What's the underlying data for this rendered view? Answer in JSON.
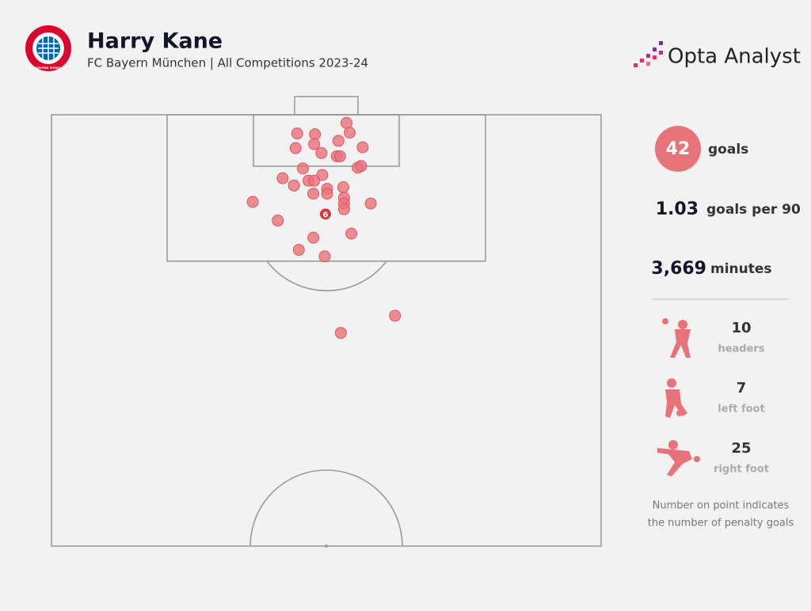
{
  "header": {
    "title": "Harry Kane",
    "subtitle": "FC Bayern München | All Competitions 2023-24",
    "brand": "Opta Analyst",
    "badge": "FC BAYERN MÜNCHEN"
  },
  "chart_data": {
    "type": "scatter",
    "xlim": [
      0,
      68
    ],
    "ylim": [
      0,
      53
    ],
    "color": "#e8727a",
    "series": [
      {
        "x": [
          36.5,
          30.4,
          32.6,
          36.9,
          30.2,
          32.5,
          35.5,
          38.5,
          33.4,
          35.3,
          35.7,
          37.9,
          38.3,
          31.1,
          28.6,
          33.5,
          30.0,
          31.8,
          32.5,
          34.1,
          36.1,
          32.4,
          34.1,
          36.2,
          36.2,
          36.2,
          39.5,
          24.9,
          28.0,
          37.1,
          32.4,
          30.6,
          33.8,
          42.5,
          35.8
        ],
        "values": [
          1.0,
          2.3,
          2.4,
          2.2,
          4.1,
          3.6,
          3.2,
          4.0,
          4.7,
          5.1,
          5.1,
          6.5,
          6.3,
          6.6,
          7.8,
          7.4,
          8.7,
          8.1,
          8.1,
          9.1,
          8.9,
          9.7,
          9.7,
          10.2,
          10.9,
          11.6,
          10.9,
          10.7,
          13.0,
          14.6,
          15.1,
          16.6,
          17.4,
          24.7,
          26.8
        ]
      },
      {
        "x": [
          33.9
        ],
        "y": [
          12.2
        ],
        "values": [
          6
        ],
        "color": "#d9353f"
      }
    ]
  },
  "stats": [
    {
      "value": 42,
      "label": "goals"
    },
    {
      "value": 1.03,
      "label": "goals per 90"
    },
    {
      "value": 3669,
      "value_label": "3,669",
      "label": "minutes"
    }
  ],
  "breakdown": [
    {
      "value": 10,
      "label": "headers"
    },
    {
      "value": 7,
      "label": "left foot"
    },
    {
      "value": 25,
      "label": "right foot"
    }
  ],
  "note": [
    "Number on point indicates",
    "the number of penalty goals"
  ]
}
